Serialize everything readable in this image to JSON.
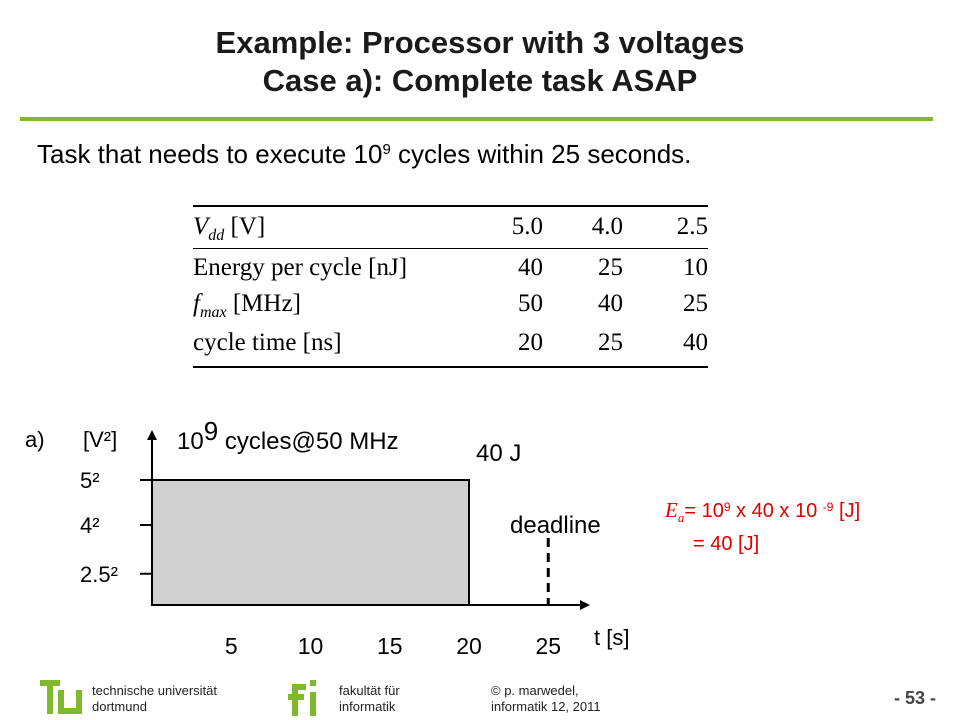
{
  "slide": {
    "title_line1": "Example: Processor with 3 voltages",
    "title_line2": "Case a): Complete task ASAP",
    "subtitle_pre": "Task that needs to execute 10",
    "subtitle_sup": "9",
    "subtitle_post": " cycles within 25 seconds."
  },
  "table": {
    "rows": [
      {
        "label_main": "V",
        "label_sub": "dd",
        "label_rest": " [V]",
        "values": [
          "5.0",
          "4.0",
          "2.5"
        ]
      },
      {
        "label_main": "Energy per cycle [nJ]",
        "values": [
          "40",
          "25",
          "10"
        ]
      },
      {
        "label_main": "f",
        "label_sub": "max",
        "label_rest": " [MHz]",
        "values": [
          "50",
          "40",
          "25"
        ]
      },
      {
        "label_main": "cycle time [ns]",
        "values": [
          "20",
          "25",
          "40"
        ]
      }
    ]
  },
  "chart_data": {
    "type": "area",
    "panel_label": "a)",
    "ylabel": "[V²]",
    "xlabel": "t [s]",
    "x_ticks": [
      "5",
      "10",
      "15",
      "20",
      "25"
    ],
    "y_ticks": [
      "5²",
      "4²",
      "2.5²"
    ],
    "x_range": [
      0,
      26
    ],
    "y_range": [
      0,
      28
    ],
    "series": [
      {
        "x": [
          0,
          20
        ],
        "y": [
          25,
          25
        ]
      }
    ],
    "deadline_x": 25,
    "annotations": {
      "cycles_base": "10",
      "cycles_exp": "9",
      "cycles_rest": " cycles@50 MHz",
      "energy": "40 J",
      "deadline": "deadline"
    }
  },
  "formula": {
    "lhs": "E",
    "lhs_sub": "a",
    "line1_a": "= 10",
    "line1_sup1": "9",
    "line1_b": " x 40 x 10 ",
    "line1_sup2": "-9",
    "line1_c": " [J]",
    "line2": "= 40 [J]"
  },
  "footer": {
    "university_line1": "technische universität",
    "university_line2": "dortmund",
    "faculty_line1": "fakultät für",
    "faculty_line2": "informatik",
    "author_line1": "© p. marwedel,",
    "author_line2": "informatik 12,  2011",
    "page": "- 53 -"
  },
  "colors": {
    "accent_green": "#80b830",
    "formula_red": "#e00000",
    "area_fill": "#d0d0d0"
  }
}
